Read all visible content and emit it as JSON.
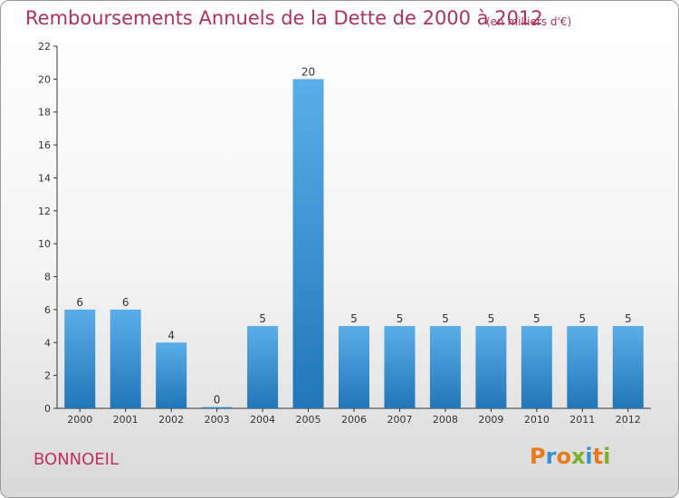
{
  "title": "Remboursements Annuels de la Dette de 2000 à 2012",
  "subtitle": "(en milliers d'€)",
  "commune": "BONNOEIL",
  "logo": {
    "text": "Proxiti",
    "letters": [
      {
        "ch": "P",
        "color": "#e97a1c"
      },
      {
        "ch": "r",
        "color": "#3a8fd6"
      },
      {
        "ch": "o",
        "color": "#e97a1c"
      },
      {
        "ch": "x",
        "color": "#7ab02d"
      },
      {
        "ch": "i",
        "color": "#3a8fd6"
      },
      {
        "ch": "t",
        "color": "#e97a1c"
      },
      {
        "ch": "i",
        "color": "#7ab02d"
      }
    ]
  },
  "colors": {
    "title": "#b0305d",
    "bar_top": "#5aaee8",
    "bar_bottom": "#2176b8",
    "axis": "#333333"
  },
  "chart_data": {
    "type": "bar",
    "categories": [
      "2000",
      "2001",
      "2002",
      "2003",
      "2004",
      "2005",
      "2006",
      "2007",
      "2008",
      "2009",
      "2010",
      "2011",
      "2012"
    ],
    "values": [
      6,
      6,
      4,
      0,
      5,
      20,
      5,
      5,
      5,
      5,
      5,
      5,
      5
    ],
    "data_labels": [
      "6",
      "6",
      "4",
      "0",
      "5",
      "20",
      "5",
      "5",
      "5",
      "5",
      "5",
      "5",
      "5"
    ],
    "ylim": [
      0,
      22
    ],
    "yticks": [
      0,
      2,
      4,
      6,
      8,
      10,
      12,
      14,
      16,
      18,
      20,
      22
    ],
    "grid": false,
    "xlabel": "",
    "ylabel": ""
  }
}
